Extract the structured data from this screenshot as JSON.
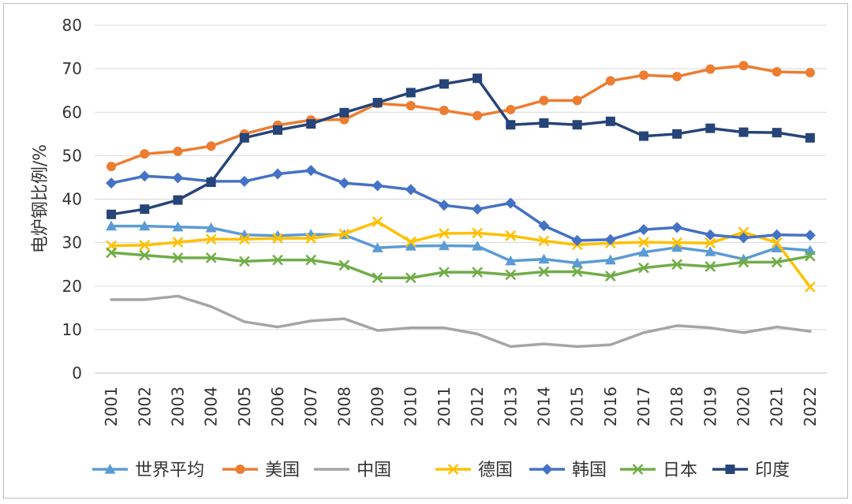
{
  "chart_data": {
    "type": "line",
    "title": "",
    "xlabel": "",
    "ylabel": "电炉钢比例/%",
    "ylim": [
      0,
      80
    ],
    "yticks": [
      0,
      10,
      20,
      30,
      40,
      50,
      60,
      70,
      80
    ],
    "grid": true,
    "legend_position": "bottom",
    "categories": [
      "2001",
      "2002",
      "2003",
      "2004",
      "2005",
      "2006",
      "2007",
      "2008",
      "2009",
      "2010",
      "2011",
      "2012",
      "2013",
      "2014",
      "2015",
      "2016",
      "2017",
      "2018",
      "2019",
      "2020",
      "2021",
      "2022"
    ],
    "series": [
      {
        "name": "世界平均",
        "color": "#5b9bd5",
        "marker": "triangle",
        "values": [
          33.8,
          33.8,
          33.6,
          33.4,
          31.8,
          31.6,
          31.9,
          31.8,
          28.8,
          29.2,
          29.3,
          29.2,
          25.8,
          26.2,
          25.3,
          26.0,
          27.8,
          28.9,
          27.9,
          26.2,
          28.8,
          28.2
        ]
      },
      {
        "name": "美国",
        "color": "#ed7d31",
        "marker": "circle",
        "values": [
          47.5,
          50.4,
          51.0,
          52.2,
          55.0,
          57.0,
          58.2,
          58.3,
          62.0,
          61.5,
          60.4,
          59.2,
          60.6,
          62.7,
          62.7,
          67.2,
          68.5,
          68.2,
          69.9,
          70.7,
          69.3,
          69.1
        ]
      },
      {
        "name": "中国",
        "color": "#a5a5a5",
        "marker": "none",
        "values": [
          16.9,
          16.9,
          17.7,
          15.3,
          11.8,
          10.6,
          12.0,
          12.5,
          9.8,
          10.4,
          10.4,
          9.0,
          6.1,
          6.7,
          6.1,
          6.5,
          9.3,
          10.9,
          10.4,
          9.3,
          10.6,
          9.6
        ]
      },
      {
        "name": "德国",
        "color": "#ffc000",
        "marker": "x",
        "values": [
          29.3,
          29.4,
          30.1,
          30.8,
          30.8,
          31.0,
          31.0,
          32.0,
          34.8,
          30.2,
          32.1,
          32.2,
          31.6,
          30.4,
          29.5,
          29.9,
          30.1,
          30.0,
          29.9,
          32.4,
          30.0,
          19.8
        ]
      },
      {
        "name": "韩国",
        "color": "#4472c4",
        "marker": "diamond",
        "values": [
          43.7,
          45.3,
          44.9,
          44.1,
          44.1,
          45.8,
          46.6,
          43.7,
          43.1,
          42.2,
          38.6,
          37.7,
          39.1,
          33.9,
          30.5,
          30.7,
          33.0,
          33.5,
          31.8,
          31.1,
          31.8,
          31.7
        ]
      },
      {
        "name": "日本",
        "color": "#70ad47",
        "marker": "x",
        "values": [
          27.7,
          27.1,
          26.5,
          26.5,
          25.7,
          26.0,
          26.0,
          24.8,
          21.9,
          21.9,
          23.2,
          23.2,
          22.6,
          23.3,
          23.3,
          22.3,
          24.2,
          25.0,
          24.5,
          25.5,
          25.5,
          26.9
        ]
      },
      {
        "name": "印度",
        "color": "#264478",
        "marker": "square",
        "values": [
          36.5,
          37.7,
          39.8,
          43.9,
          54.1,
          55.9,
          57.3,
          59.9,
          62.2,
          64.5,
          66.5,
          67.8,
          57.1,
          57.5,
          57.1,
          57.9,
          54.5,
          55.0,
          56.3,
          55.4,
          55.3,
          54.1
        ]
      }
    ]
  }
}
